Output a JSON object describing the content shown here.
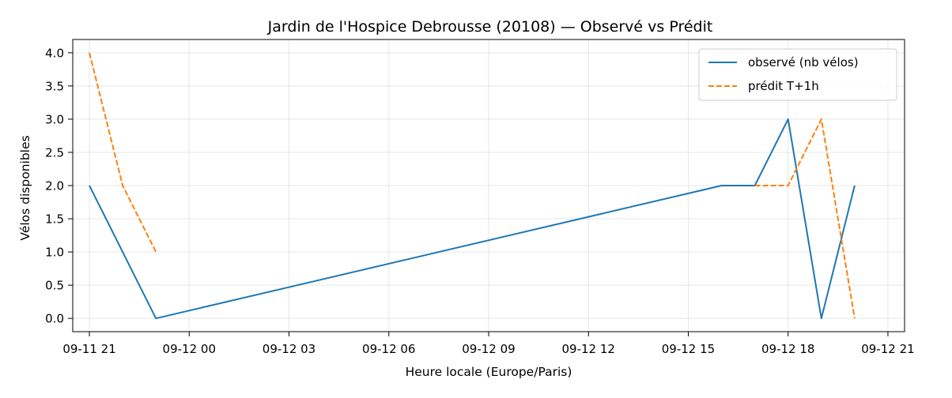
{
  "chart_data": {
    "type": "line",
    "title": "Jardin de l'Hospice Debrousse (20108) — Observé vs Prédit",
    "xlabel": "Heure locale (Europe/Paris)",
    "ylabel": "Vélos disponibles",
    "x_axis_type": "datetime",
    "xlim": [
      "2025-09-11T20:30",
      "2025-09-12T21:30"
    ],
    "ylim": [
      -0.2,
      4.2
    ],
    "x_ticks": [
      {
        "t": "2025-09-11T21:00",
        "label": "09-11 21"
      },
      {
        "t": "2025-09-12T00:00",
        "label": "09-12 00"
      },
      {
        "t": "2025-09-12T03:00",
        "label": "09-12 03"
      },
      {
        "t": "2025-09-12T06:00",
        "label": "09-12 06"
      },
      {
        "t": "2025-09-12T09:00",
        "label": "09-12 09"
      },
      {
        "t": "2025-09-12T12:00",
        "label": "09-12 12"
      },
      {
        "t": "2025-09-12T15:00",
        "label": "09-12 15"
      },
      {
        "t": "2025-09-12T18:00",
        "label": "09-12 18"
      },
      {
        "t": "2025-09-12T21:00",
        "label": "09-12 21"
      }
    ],
    "y_ticks": [
      {
        "v": 0.0,
        "label": "0.0"
      },
      {
        "v": 0.5,
        "label": "0.5"
      },
      {
        "v": 1.0,
        "label": "1.0"
      },
      {
        "v": 1.5,
        "label": "1.5"
      },
      {
        "v": 2.0,
        "label": "2.0"
      },
      {
        "v": 2.5,
        "label": "2.5"
      },
      {
        "v": 3.0,
        "label": "3.0"
      },
      {
        "v": 3.5,
        "label": "3.5"
      },
      {
        "v": 4.0,
        "label": "4.0"
      }
    ],
    "grid": true,
    "legend_position": "top-right",
    "series": [
      {
        "name": "observé (nb vélos)",
        "color": "#1f77b4",
        "dash": "solid",
        "points": [
          {
            "t": "2025-09-11T21:00",
            "y": 2
          },
          {
            "t": "2025-09-11T23:00",
            "y": 0
          },
          {
            "t": "2025-09-12T16:00",
            "y": 2
          },
          {
            "t": "2025-09-12T17:00",
            "y": 2
          },
          {
            "t": "2025-09-12T18:00",
            "y": 3
          },
          {
            "t": "2025-09-12T19:00",
            "y": 0
          },
          {
            "t": "2025-09-12T20:00",
            "y": 2
          }
        ]
      },
      {
        "name": "prédit T+1h",
        "color": "#ff7f0e",
        "dash": "dashed",
        "segments": [
          [
            {
              "t": "2025-09-11T21:00",
              "y": 4
            },
            {
              "t": "2025-09-11T22:00",
              "y": 2
            },
            {
              "t": "2025-09-11T23:00",
              "y": 1
            }
          ],
          [
            {
              "t": "2025-09-12T17:00",
              "y": 2
            },
            {
              "t": "2025-09-12T18:00",
              "y": 2
            },
            {
              "t": "2025-09-12T19:00",
              "y": 3
            },
            {
              "t": "2025-09-12T20:00",
              "y": 0
            }
          ]
        ]
      }
    ]
  }
}
